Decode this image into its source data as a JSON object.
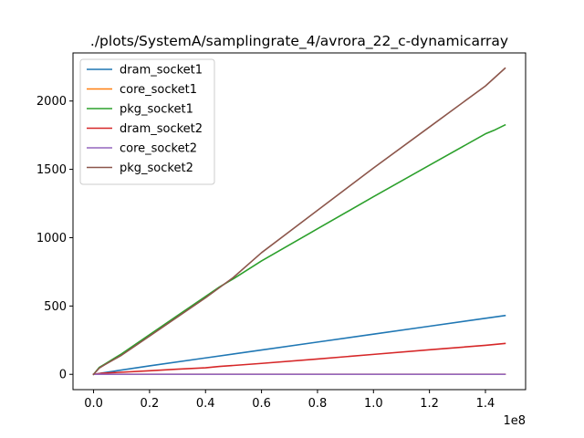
{
  "chart_data": {
    "type": "line",
    "title": "./plots/SystemA/samplingrate_4/avrora_22_c-dynamicarray",
    "xlabel": "",
    "ylabel": "",
    "x_offset_label": "1e8",
    "xlim": [
      -0.0735,
      1.5435
    ],
    "ylim": [
      -112,
      2352
    ],
    "x_ticks": [
      0.0,
      0.2,
      0.4,
      0.6,
      0.8,
      1.0,
      1.2,
      1.4
    ],
    "x_tick_labels": [
      "0.0",
      "0.2",
      "0.4",
      "0.6",
      "0.8",
      "1.0",
      "1.2",
      "1.4"
    ],
    "y_ticks": [
      0,
      500,
      1000,
      1500,
      2000
    ],
    "y_tick_labels": [
      "0",
      "500",
      "1000",
      "1500",
      "2000"
    ],
    "grid": false,
    "legend_position": "top-left",
    "series": [
      {
        "name": "dram_socket1",
        "color": "#1f77b4",
        "x": [
          0.0,
          0.03,
          0.2,
          0.4,
          0.6,
          0.8,
          1.0,
          1.2,
          1.4,
          1.47
        ],
        "y": [
          0,
          10,
          62,
          120,
          178,
          236,
          294,
          352,
          410,
          430
        ]
      },
      {
        "name": "core_socket1",
        "color": "#ff7f0e",
        "x": [
          0.0,
          0.5,
          1.0,
          1.47
        ],
        "y": [
          0,
          0,
          0,
          0
        ]
      },
      {
        "name": "pkg_socket1",
        "color": "#2ca02c",
        "x": [
          0.0,
          0.02,
          0.04,
          0.1,
          0.2,
          0.3,
          0.4,
          0.45,
          0.5,
          0.6,
          0.8,
          1.0,
          1.2,
          1.4,
          1.43,
          1.47
        ],
        "y": [
          0,
          50,
          75,
          150,
          290,
          430,
          570,
          640,
          700,
          830,
          1065,
          1300,
          1530,
          1760,
          1785,
          1825
        ]
      },
      {
        "name": "dram_socket2",
        "color": "#d62728",
        "x": [
          0.0,
          0.03,
          0.2,
          0.3,
          0.4,
          0.45,
          0.5,
          0.6,
          0.8,
          1.0,
          1.2,
          1.4,
          1.47
        ],
        "y": [
          0,
          8,
          26,
          38,
          48,
          58,
          65,
          80,
          112,
          146,
          180,
          212,
          226
        ]
      },
      {
        "name": "core_socket2",
        "color": "#9467bd",
        "x": [
          0.0,
          0.5,
          1.0,
          1.47
        ],
        "y": [
          0,
          0,
          0,
          0
        ]
      },
      {
        "name": "pkg_socket2",
        "color": "#8c564b",
        "x": [
          0.0,
          0.02,
          0.04,
          0.1,
          0.2,
          0.3,
          0.4,
          0.45,
          0.5,
          0.6,
          0.8,
          1.0,
          1.2,
          1.4,
          1.47
        ],
        "y": [
          0,
          45,
          70,
          140,
          280,
          420,
          560,
          635,
          710,
          890,
          1200,
          1510,
          1810,
          2110,
          2240
        ]
      }
    ]
  }
}
